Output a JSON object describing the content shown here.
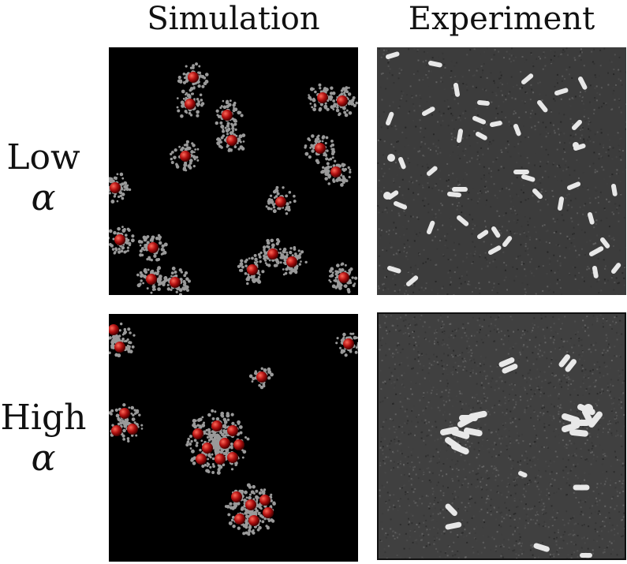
{
  "columns": {
    "simulation": "Simulation",
    "experiment": "Experiment"
  },
  "rows": {
    "low": {
      "word": "Low",
      "symbol": "α"
    },
    "high": {
      "word": "High",
      "symbol": "α"
    }
  },
  "colors": {
    "particle": "#b01010",
    "polymer": "#9a9a9a",
    "sim_bg": "#000000",
    "exp_bg": "#3c3c3c",
    "rod": "#e8e8e8"
  }
}
